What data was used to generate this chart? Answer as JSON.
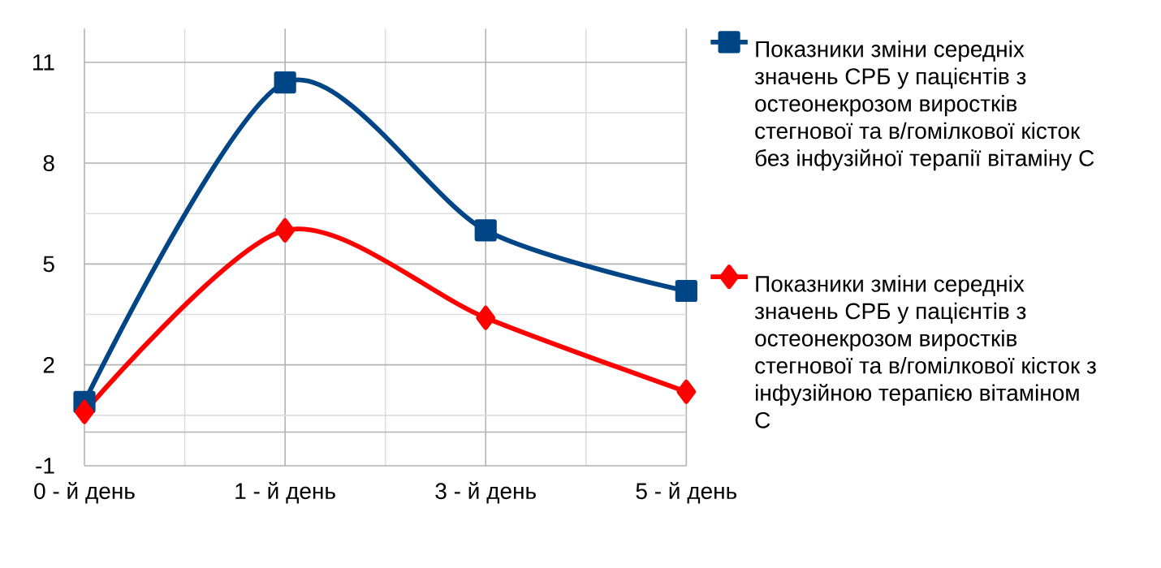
{
  "chart_data": {
    "type": "line",
    "categories": [
      "0 - й день",
      "1 - й день",
      "3 - й день",
      "5 - й день"
    ],
    "ylim": [
      -1,
      12
    ],
    "yticks": [
      -1,
      2,
      5,
      8,
      11
    ],
    "grid": true,
    "legend": "right",
    "line_style": "solid",
    "series": [
      {
        "name": "Показники зміни середніх значень СРБ  у пацієнтів з остеонекрозом виростків стегнової та в/гомілкової кісток без інфузійної терапії вітаміну С",
        "color": "#004586",
        "marker": "square",
        "values": [
          0.9,
          10.4,
          6.0,
          4.2
        ]
      },
      {
        "name": "Показники зміни середніх значень СРБ  у пацієнтів з остеонекрозом виростків стегнової та в/гомілкової кісток з інфузійною терапією вітаміном С",
        "color": "#ff0000",
        "marker": "diamond",
        "values": [
          0.6,
          6.0,
          3.4,
          1.2
        ]
      }
    ]
  }
}
